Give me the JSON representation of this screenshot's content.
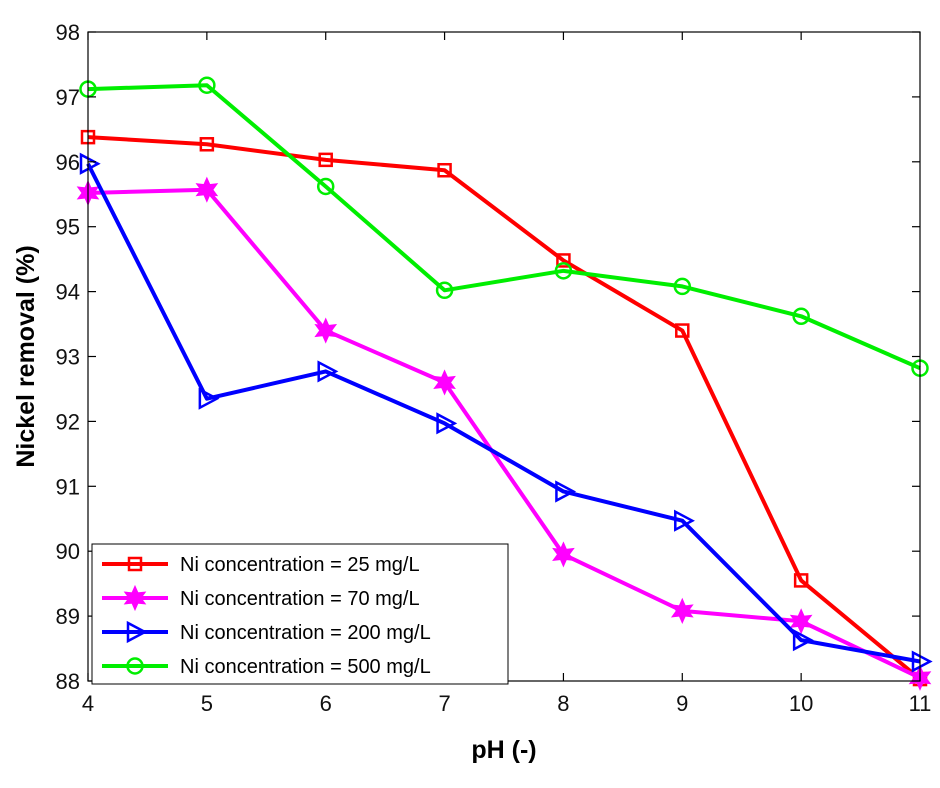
{
  "chart_data": {
    "type": "line",
    "xlabel": "pH (-)",
    "ylabel": "Nickel removal (%)",
    "xlim": [
      4,
      11
    ],
    "ylim": [
      88,
      98
    ],
    "xticks": [
      4,
      5,
      6,
      7,
      8,
      9,
      10,
      11
    ],
    "yticks": [
      88,
      89,
      90,
      91,
      92,
      93,
      94,
      95,
      96,
      97,
      98
    ],
    "grid": false,
    "legend_position": "bottom-left",
    "series": [
      {
        "name": "Ni concentration = 25 mg/L",
        "color": "#ff0000",
        "marker": "square",
        "x": [
          4,
          5,
          6,
          7,
          8,
          9,
          10,
          11
        ],
        "y": [
          96.38,
          96.27,
          96.03,
          95.87,
          94.48,
          93.4,
          89.55,
          88.03
        ]
      },
      {
        "name": "Ni concentration = 70 mg/L",
        "color": "#ff00ff",
        "marker": "hexagram",
        "x": [
          4,
          5,
          6,
          7,
          8,
          9,
          10,
          11
        ],
        "y": [
          95.52,
          95.57,
          93.4,
          92.6,
          89.95,
          89.08,
          88.92,
          88.05
        ]
      },
      {
        "name": "Ni concentration = 200 mg/L",
        "color": "#0000ff",
        "marker": "triangle-right",
        "x": [
          4,
          5,
          6,
          7,
          8,
          9,
          10,
          11
        ],
        "y": [
          95.97,
          92.35,
          92.77,
          91.97,
          90.92,
          90.47,
          88.63,
          88.3
        ]
      },
      {
        "name": "Ni concentration = 500 mg/L",
        "color": "#00ee00",
        "marker": "circle",
        "x": [
          4,
          5,
          6,
          7,
          8,
          9,
          10,
          11
        ],
        "y": [
          97.12,
          97.18,
          95.62,
          94.02,
          94.32,
          94.08,
          93.62,
          92.82
        ]
      }
    ]
  }
}
